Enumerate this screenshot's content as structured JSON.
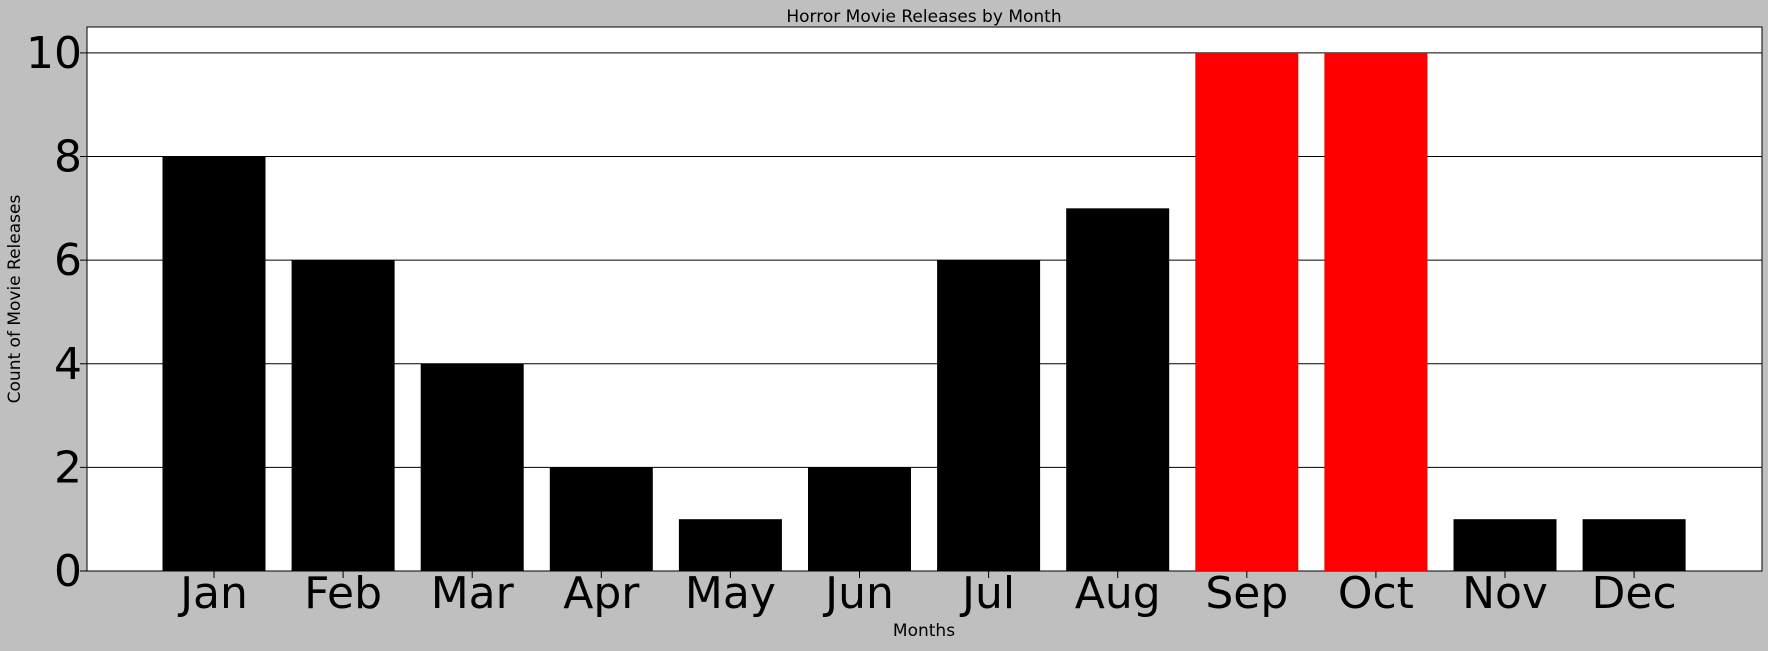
{
  "chart_data": {
    "type": "bar",
    "title": "Horror Movie Releases by Month",
    "xlabel": "Months",
    "ylabel": "Count of Movie Releases",
    "categories": [
      "Jan",
      "Feb",
      "Mar",
      "Apr",
      "May",
      "Jun",
      "Jul",
      "Aug",
      "Sep",
      "Oct",
      "Nov",
      "Dec"
    ],
    "values": [
      8,
      6,
      4,
      2,
      1,
      2,
      6,
      7,
      10,
      10,
      1,
      1
    ],
    "bar_colors": [
      "#000000",
      "#000000",
      "#000000",
      "#000000",
      "#000000",
      "#000000",
      "#000000",
      "#000000",
      "#ff0000",
      "#ff0000",
      "#000000",
      "#000000"
    ],
    "ylim": [
      0,
      10.5
    ],
    "yticks": [
      0,
      2,
      4,
      6,
      8,
      10
    ],
    "grid": "horizontal",
    "legend": "none"
  },
  "colors": {
    "figure_background": "#bfbfbf",
    "plot_background": "#ffffff",
    "default_bar": "#000000",
    "highlight_bar": "#ff0000"
  }
}
